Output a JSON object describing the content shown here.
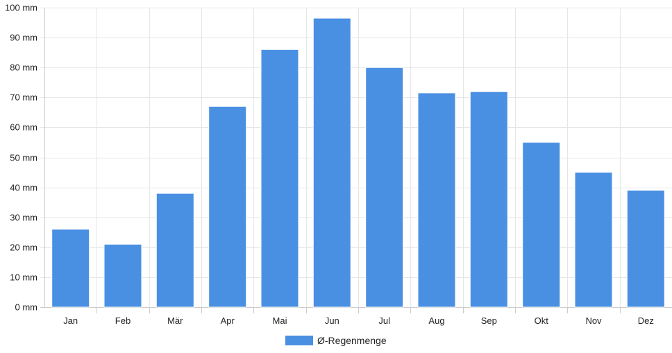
{
  "chart_data": {
    "type": "bar",
    "title": "",
    "xlabel": "",
    "ylabel": "",
    "categories": [
      "Jan",
      "Feb",
      "Mär",
      "Apr",
      "Mai",
      "Jun",
      "Jul",
      "Aug",
      "Sep",
      "Okt",
      "Nov",
      "Dez"
    ],
    "series": [
      {
        "name": "Ø-Regenmenge",
        "color": "#4a90e2",
        "values": [
          26,
          21,
          38,
          67,
          86,
          96.5,
          80,
          71.5,
          72,
          55,
          45,
          39
        ]
      }
    ],
    "ylim": [
      0,
      100
    ],
    "yticks": [
      0,
      10,
      20,
      30,
      40,
      50,
      60,
      70,
      80,
      90,
      100
    ],
    "ytick_labels": [
      "0 mm",
      "10 mm",
      "20 mm",
      "30 mm",
      "40 mm",
      "50 mm",
      "60 mm",
      "70 mm",
      "80 mm",
      "90 mm",
      "100 mm"
    ],
    "grid": true,
    "legend": "bottom-center",
    "colors": {
      "bar": "#4a90e2",
      "grid": "#e6e6e6",
      "axis": "#cccccc",
      "text": "#222222"
    }
  }
}
